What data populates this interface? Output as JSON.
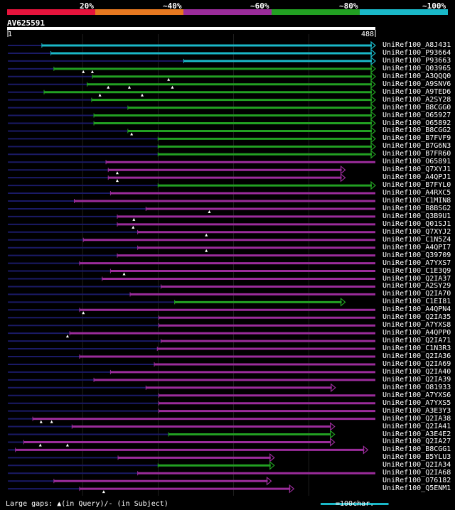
{
  "legend": {
    "labels": [
      "20%",
      "~40%",
      "~60%",
      "~80%",
      "~100%"
    ],
    "segment_colors": [
      "#e6143c",
      "#e67820",
      "#9b2c9b",
      "#22a022",
      "#1ab8c8"
    ]
  },
  "query": {
    "id": "AV625591",
    "start_label": "1",
    "end_label": "488",
    "length": 488
  },
  "colors": {
    "cyan": "#1ab8c8",
    "green": "#22a022",
    "magenta": "#9b2c9b",
    "query_line": "#1a1a66",
    "grid": "#555555",
    "gap_marker": "#ffffff"
  },
  "hits": [
    {
      "label": "UniRef100_A8J431",
      "color": "cyan",
      "start": 46,
      "end": 488,
      "qstart": 1,
      "arrow": true,
      "gaps": []
    },
    {
      "label": "UniRef100_P93664",
      "color": "cyan",
      "start": 58,
      "end": 488,
      "qstart": 1,
      "arrow": true,
      "gaps": []
    },
    {
      "label": "UniRef100_P93663",
      "color": "cyan",
      "start": 234,
      "end": 488,
      "qstart": 1,
      "arrow": true,
      "gaps": []
    },
    {
      "label": "UniRef100_Q03965",
      "color": "green",
      "start": 62,
      "end": 488,
      "qstart": 1,
      "arrow": true,
      "gaps": [
        101,
        113
      ]
    },
    {
      "label": "UniRef100_A3QQQ0",
      "color": "green",
      "start": 113,
      "end": 488,
      "qstart": 1,
      "arrow": true,
      "gaps": [
        214
      ]
    },
    {
      "label": "UniRef100_A9SNV6",
      "color": "green",
      "start": 106,
      "end": 488,
      "qstart": 1,
      "arrow": true,
      "gaps": [
        134,
        162,
        219
      ]
    },
    {
      "label": "UniRef100_A9TED6",
      "color": "green",
      "start": 49,
      "end": 488,
      "qstart": 1,
      "arrow": true,
      "gaps": [
        123,
        179
      ]
    },
    {
      "label": "UniRef100_A2SY28",
      "color": "green",
      "start": 112,
      "end": 488,
      "qstart": 1,
      "arrow": true,
      "gaps": []
    },
    {
      "label": "UniRef100_B8CGG0",
      "color": "green",
      "start": 160,
      "end": 488,
      "qstart": 1,
      "arrow": true,
      "gaps": []
    },
    {
      "label": "UniRef100_O65927",
      "color": "green",
      "start": 115,
      "end": 488,
      "qstart": 1,
      "arrow": true,
      "gaps": []
    },
    {
      "label": "UniRef100_O65892",
      "color": "green",
      "start": 115,
      "end": 488,
      "qstart": 1,
      "arrow": true,
      "gaps": []
    },
    {
      "label": "UniRef100_B8CGG2",
      "color": "green",
      "start": 160,
      "end": 488,
      "qstart": 1,
      "arrow": true,
      "gaps": [
        165
      ]
    },
    {
      "label": "UniRef100_B7FVF9",
      "color": "green",
      "start": 200,
      "end": 488,
      "qstart": 1,
      "arrow": true,
      "gaps": []
    },
    {
      "label": "UniRef100_B7G6N3",
      "color": "green",
      "start": 200,
      "end": 488,
      "qstart": 1,
      "arrow": true,
      "gaps": []
    },
    {
      "label": "UniRef100_B7FR60",
      "color": "green",
      "start": 200,
      "end": 488,
      "qstart": 1,
      "arrow": true,
      "gaps": []
    },
    {
      "label": "UniRef100_O65891",
      "color": "magenta",
      "start": 131,
      "end": 488,
      "qstart": 1,
      "arrow": false,
      "gaps": []
    },
    {
      "label": "UniRef100_Q7XYJ1",
      "color": "magenta",
      "start": 134,
      "end": 448,
      "qstart": 1,
      "arrow": true,
      "gaps": [
        146
      ]
    },
    {
      "label": "UniRef100_A4QPJ1",
      "color": "magenta",
      "start": 134,
      "end": 448,
      "qstart": 1,
      "arrow": true,
      "gaps": [
        146
      ]
    },
    {
      "label": "UniRef100_B7FYL0",
      "color": "green",
      "start": 200,
      "end": 488,
      "qstart": 1,
      "arrow": true,
      "gaps": []
    },
    {
      "label": "UniRef100_A4RXC5",
      "color": "magenta",
      "start": 137,
      "end": 488,
      "qstart": 1,
      "arrow": false,
      "gaps": []
    },
    {
      "label": "UniRef100_C1MIN8",
      "color": "magenta",
      "start": 89,
      "end": 488,
      "qstart": 1,
      "arrow": false,
      "gaps": []
    },
    {
      "label": "UniRef100_B8BSG2",
      "color": "magenta",
      "start": 184,
      "end": 488,
      "qstart": 1,
      "arrow": false,
      "gaps": [
        268
      ]
    },
    {
      "label": "UniRef100_Q3B9U1",
      "color": "magenta",
      "start": 146,
      "end": 488,
      "qstart": 1,
      "arrow": false,
      "gaps": [
        168
      ]
    },
    {
      "label": "UniRef100_Q01SJ1",
      "color": "magenta",
      "start": 146,
      "end": 488,
      "qstart": 1,
      "arrow": false,
      "gaps": [
        167
      ]
    },
    {
      "label": "UniRef100_Q7XYJ2",
      "color": "magenta",
      "start": 173,
      "end": 488,
      "qstart": 1,
      "arrow": false,
      "gaps": [
        264
      ]
    },
    {
      "label": "UniRef100_C1N5Z4",
      "color": "magenta",
      "start": 101,
      "end": 488,
      "qstart": 1,
      "arrow": false,
      "gaps": []
    },
    {
      "label": "UniRef100_A4QPI7",
      "color": "magenta",
      "start": 173,
      "end": 488,
      "qstart": 1,
      "arrow": false,
      "gaps": [
        264
      ]
    },
    {
      "label": "UniRef100_Q39709",
      "color": "magenta",
      "start": 146,
      "end": 488,
      "qstart": 1,
      "arrow": false,
      "gaps": []
    },
    {
      "label": "UniRef100_A7YXS7",
      "color": "magenta",
      "start": 96,
      "end": 488,
      "qstart": 1,
      "arrow": false,
      "gaps": []
    },
    {
      "label": "UniRef100_C1E3Q9",
      "color": "magenta",
      "start": 137,
      "end": 488,
      "qstart": 1,
      "arrow": false,
      "gaps": [
        155
      ]
    },
    {
      "label": "UniRef100_Q2IA37",
      "color": "magenta",
      "start": 126,
      "end": 488,
      "qstart": 1,
      "arrow": false,
      "gaps": []
    },
    {
      "label": "UniRef100_A2SY29",
      "color": "magenta",
      "start": 204,
      "end": 488,
      "qstart": 1,
      "arrow": false,
      "gaps": []
    },
    {
      "label": "UniRef100_Q2IA70",
      "color": "magenta",
      "start": 163,
      "end": 488,
      "qstart": 1,
      "arrow": false,
      "gaps": []
    },
    {
      "label": "UniRef100_C1EI81",
      "color": "green",
      "start": 222,
      "end": 448,
      "qstart": 1,
      "arrow": true,
      "gaps": []
    },
    {
      "label": "UniRef100_A4QPN4",
      "color": "magenta",
      "start": 96,
      "end": 488,
      "qstart": 1,
      "arrow": false,
      "gaps": [
        101
      ]
    },
    {
      "label": "UniRef100_Q2IA35",
      "color": "magenta",
      "start": 201,
      "end": 488,
      "qstart": 1,
      "arrow": false,
      "gaps": []
    },
    {
      "label": "UniRef100_A7YXS8",
      "color": "magenta",
      "start": 201,
      "end": 488,
      "qstart": 1,
      "arrow": false,
      "gaps": []
    },
    {
      "label": "UniRef100_A4QPP0",
      "color": "magenta",
      "start": 83,
      "end": 488,
      "qstart": 1,
      "arrow": false,
      "gaps": [
        80
      ]
    },
    {
      "label": "UniRef100_Q2IA71",
      "color": "magenta",
      "start": 204,
      "end": 488,
      "qstart": 1,
      "arrow": false,
      "gaps": []
    },
    {
      "label": "UniRef100_C1N3R3",
      "color": "magenta",
      "start": 199,
      "end": 488,
      "qstart": 1,
      "arrow": false,
      "gaps": []
    },
    {
      "label": "UniRef100_Q2IA36",
      "color": "magenta",
      "start": 96,
      "end": 488,
      "qstart": 1,
      "arrow": false,
      "gaps": []
    },
    {
      "label": "UniRef100_Q2IA69",
      "color": "magenta",
      "start": 195,
      "end": 488,
      "qstart": 1,
      "arrow": false,
      "gaps": []
    },
    {
      "label": "UniRef100_Q2IA40",
      "color": "magenta",
      "start": 137,
      "end": 488,
      "qstart": 1,
      "arrow": false,
      "gaps": []
    },
    {
      "label": "UniRef100_Q2IA39",
      "color": "magenta",
      "start": 115,
      "end": 488,
      "qstart": 1,
      "arrow": false,
      "gaps": []
    },
    {
      "label": "UniRef100_O81933",
      "color": "magenta",
      "start": 184,
      "end": 435,
      "qstart": 1,
      "arrow": true,
      "gaps": []
    },
    {
      "label": "UniRef100_A7YXS6",
      "color": "magenta",
      "start": 201,
      "end": 488,
      "qstart": 1,
      "arrow": false,
      "gaps": []
    },
    {
      "label": "UniRef100_A7YXS5",
      "color": "magenta",
      "start": 201,
      "end": 488,
      "qstart": 1,
      "arrow": false,
      "gaps": []
    },
    {
      "label": "UniRef100_A3E3Y3",
      "color": "magenta",
      "start": 201,
      "end": 488,
      "qstart": 1,
      "arrow": false,
      "gaps": []
    },
    {
      "label": "UniRef100_Q2IA38",
      "color": "magenta",
      "start": 34,
      "end": 488,
      "qstart": 1,
      "arrow": false,
      "gaps": [
        45,
        59
      ]
    },
    {
      "label": "UniRef100_Q2IA41",
      "color": "magenta",
      "start": 86,
      "end": 434,
      "qstart": 1,
      "arrow": true,
      "gaps": []
    },
    {
      "label": "UniRef100_A3E4E2",
      "color": "green",
      "start": 214,
      "end": 434,
      "qstart": 1,
      "arrow": true,
      "gaps": []
    },
    {
      "label": "UniRef100_Q2IA27",
      "color": "magenta",
      "start": 22,
      "end": 434,
      "qstart": 1,
      "arrow": true,
      "gaps": [
        44,
        80
      ]
    },
    {
      "label": "UniRef100_B8CGG1",
      "color": "magenta",
      "start": 11,
      "end": 478,
      "qstart": 1,
      "arrow": true,
      "gaps": []
    },
    {
      "label": "UniRef100_B5YLU3",
      "color": "magenta",
      "start": 147,
      "end": 354,
      "qstart": 1,
      "arrow": true,
      "gaps": []
    },
    {
      "label": "UniRef100_Q2IA34",
      "color": "green",
      "start": 200,
      "end": 354,
      "qstart": 1,
      "arrow": true,
      "gaps": []
    },
    {
      "label": "UniRef100_Q2IA68",
      "color": "magenta",
      "start": 173,
      "end": 488,
      "qstart": 1,
      "arrow": false,
      "gaps": []
    },
    {
      "label": "UniRef100_O76182",
      "color": "magenta",
      "start": 62,
      "end": 350,
      "qstart": 1,
      "arrow": true,
      "gaps": []
    },
    {
      "label": "UniRef100_Q5ENM1",
      "color": "magenta",
      "start": 96,
      "end": 380,
      "qstart": 1,
      "arrow": true,
      "gaps": [
        128
      ]
    }
  ],
  "footer": {
    "text": "Large gaps: ▲(in Query)/- (in Subject)",
    "scale_text": "=100char."
  }
}
